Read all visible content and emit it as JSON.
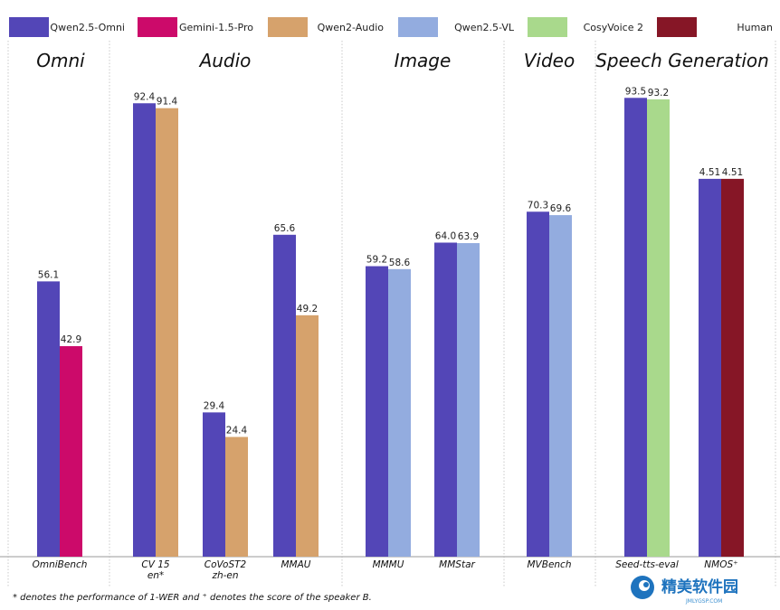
{
  "chart_data": {
    "type": "bar",
    "legend": [
      {
        "name": "Qwen2.5-Omni",
        "color": "#5346b7"
      },
      {
        "name": "Gemini-1.5-Pro",
        "color": "#cc0a6a"
      },
      {
        "name": "Qwen2-Audio",
        "color": "#d6a26c"
      },
      {
        "name": "Qwen2.5-VL",
        "color": "#93acdf"
      },
      {
        "name": "CosyVoice 2",
        "color": "#a9d98c"
      },
      {
        "name": "Human",
        "color": "#861626"
      }
    ],
    "sections": [
      {
        "title": "Omni",
        "groups": [
          {
            "label": [
              "OmniBench"
            ],
            "bars": [
              {
                "series": "Qwen2.5-Omni",
                "value": 56.1,
                "label": "56.1"
              },
              {
                "series": "Gemini-1.5-Pro",
                "value": 42.9,
                "label": "42.9"
              }
            ]
          }
        ]
      },
      {
        "title": "Audio",
        "groups": [
          {
            "label": [
              "CV 15",
              "en*"
            ],
            "bars": [
              {
                "series": "Qwen2.5-Omni",
                "value": 92.4,
                "label": "92.4"
              },
              {
                "series": "Qwen2-Audio",
                "value": 91.4,
                "label": "91.4"
              }
            ]
          },
          {
            "label": [
              "CoVoST2",
              "zh-en"
            ],
            "bars": [
              {
                "series": "Qwen2.5-Omni",
                "value": 29.4,
                "label": "29.4"
              },
              {
                "series": "Qwen2-Audio",
                "value": 24.4,
                "label": "24.4"
              }
            ]
          },
          {
            "label": [
              "MMAU"
            ],
            "bars": [
              {
                "series": "Qwen2.5-Omni",
                "value": 65.6,
                "label": "65.6"
              },
              {
                "series": "Qwen2-Audio",
                "value": 49.2,
                "label": "49.2"
              }
            ]
          }
        ]
      },
      {
        "title": "Image",
        "groups": [
          {
            "label": [
              "MMMU"
            ],
            "bars": [
              {
                "series": "Qwen2.5-Omni",
                "value": 59.2,
                "label": "59.2"
              },
              {
                "series": "Qwen2.5-VL",
                "value": 58.6,
                "label": "58.6"
              }
            ]
          },
          {
            "label": [
              "MMStar"
            ],
            "bars": [
              {
                "series": "Qwen2.5-Omni",
                "value": 64.0,
                "label": "64.0"
              },
              {
                "series": "Qwen2.5-VL",
                "value": 63.9,
                "label": "63.9"
              }
            ]
          }
        ]
      },
      {
        "title": "Video",
        "groups": [
          {
            "label": [
              "MVBench"
            ],
            "bars": [
              {
                "series": "Qwen2.5-Omni",
                "value": 70.3,
                "label": "70.3"
              },
              {
                "series": "Qwen2.5-VL",
                "value": 69.6,
                "label": "69.6"
              }
            ]
          }
        ]
      },
      {
        "title": "Speech Generation",
        "groups": [
          {
            "label": [
              "Seed-tts-eval"
            ],
            "bars": [
              {
                "series": "Qwen2.5-Omni",
                "value": 93.5,
                "label": "93.5"
              },
              {
                "series": "CosyVoice 2",
                "value": 93.2,
                "label": "93.2"
              }
            ]
          },
          {
            "label": [
              "NMOS⁺"
            ],
            "bars": [
              {
                "series": "Qwen2.5-Omni",
                "value": 4.51,
                "bar_value": 77.0,
                "label": "4.51"
              },
              {
                "series": "Human",
                "value": 4.51,
                "bar_value": 77.0,
                "label": "4.51"
              }
            ]
          }
        ]
      }
    ],
    "grid": false,
    "legend_position": "top"
  },
  "footnote": "* denotes the performance of 1-WER and ⁺ denotes the score of the speaker B.",
  "watermark": {
    "text": "精美软件园",
    "sub": "JMLYGSP.COM"
  }
}
